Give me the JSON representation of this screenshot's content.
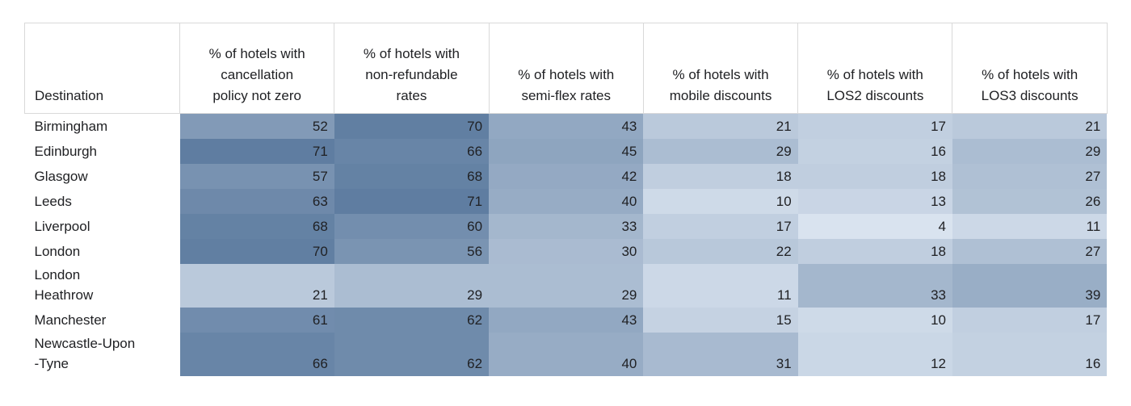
{
  "table": {
    "column_headers": [
      "Destination",
      "% of hotels with\ncancellation\npolicy not zero",
      "% of hotels with\nnon-refundable\nrates",
      "% of hotels with\nsemi-flex rates",
      "% of hotels with\nmobile discounts",
      "% of hotels with\nLOS2 discounts",
      "% of hotels with\nLOS3 discounts"
    ],
    "rows": [
      {
        "destination": "Birmingham",
        "values": [
          52,
          70,
          43,
          21,
          17,
          21
        ]
      },
      {
        "destination": "Edinburgh",
        "values": [
          71,
          66,
          45,
          29,
          16,
          29
        ]
      },
      {
        "destination": "Glasgow",
        "values": [
          57,
          68,
          42,
          18,
          18,
          27
        ]
      },
      {
        "destination": "Leeds",
        "values": [
          63,
          71,
          40,
          10,
          13,
          26
        ]
      },
      {
        "destination": "Liverpool",
        "values": [
          68,
          60,
          33,
          17,
          4,
          11
        ]
      },
      {
        "destination": "London",
        "values": [
          70,
          56,
          30,
          22,
          18,
          27
        ]
      },
      {
        "destination": "London\nHeathrow",
        "values": [
          21,
          29,
          29,
          11,
          33,
          39
        ]
      },
      {
        "destination": "Manchester",
        "values": [
          61,
          62,
          43,
          15,
          10,
          17
        ]
      },
      {
        "destination": "Newcastle-Upon\n-Tyne",
        "values": [
          66,
          62,
          40,
          31,
          12,
          16
        ]
      }
    ]
  },
  "heatmap": {
    "min_value": 4,
    "max_value": 71,
    "min_color": "#d9e3ef",
    "max_color": "#5f7da1",
    "text_color": "#202124",
    "header_border_color": "#d9d9d9"
  },
  "chart_data": {
    "type": "heatmap",
    "title": "",
    "categories": [
      "Birmingham",
      "Edinburgh",
      "Glasgow",
      "Leeds",
      "Liverpool",
      "London",
      "London Heathrow",
      "Manchester",
      "Newcastle-Upon-Tyne"
    ],
    "series": [
      {
        "name": "% of hotels with cancellation policy not zero",
        "values": [
          52,
          71,
          57,
          63,
          68,
          70,
          21,
          61,
          66
        ]
      },
      {
        "name": "% of hotels with non-refundable rates",
        "values": [
          70,
          66,
          68,
          71,
          60,
          56,
          29,
          62,
          62
        ]
      },
      {
        "name": "% of hotels with semi-flex rates",
        "values": [
          43,
          45,
          42,
          40,
          33,
          30,
          29,
          43,
          40
        ]
      },
      {
        "name": "% of hotels with mobile discounts",
        "values": [
          21,
          29,
          18,
          10,
          17,
          22,
          11,
          15,
          31
        ]
      },
      {
        "name": "% of hotels with LOS2 discounts",
        "values": [
          17,
          16,
          18,
          13,
          4,
          18,
          33,
          10,
          12
        ]
      },
      {
        "name": "% of hotels with LOS3 discounts",
        "values": [
          21,
          29,
          27,
          26,
          11,
          27,
          39,
          17,
          16
        ]
      }
    ],
    "value_range": [
      4,
      71
    ],
    "color_scale": [
      "#d9e3ef",
      "#5f7da1"
    ],
    "legend": false,
    "grid": false
  }
}
